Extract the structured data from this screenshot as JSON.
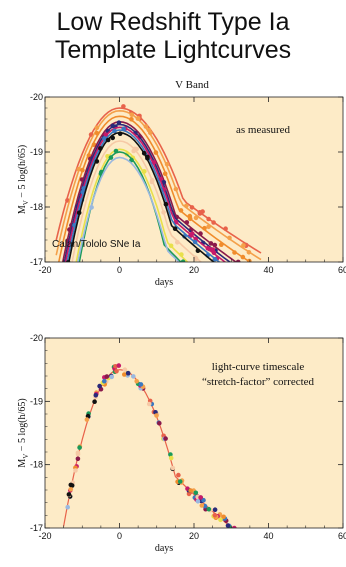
{
  "page": {
    "title_line1": "Low Redshift Type Ia",
    "title_line2": "Template Lightcurves"
  },
  "colors": {
    "panel_bg": "#fdebc7",
    "axis": "#222222",
    "palette": [
      "#f4a04a",
      "#e8624a",
      "#3a78c0",
      "#8a1a4a",
      "#2a2a7a",
      "#c71a6a",
      "#1a9a5a",
      "#f6c9a6",
      "#111111",
      "#e8e04a",
      "#9ab8e0",
      "#f08c2c"
    ]
  },
  "chart_data": [
    {
      "type": "scatter",
      "title": "V Band",
      "xlabel": "days",
      "ylabel": "M_V − 5 log(h/65)",
      "ylabel_main": "M",
      "ylabel_sub": "V",
      "ylabel_rest": " − 5 log(h/65)",
      "xlim": [
        -20,
        60
      ],
      "ylim": [
        -17,
        -20
      ],
      "xticks": [
        -20,
        0,
        20,
        40,
        60
      ],
      "xtick_labels": [
        "-20",
        "0",
        "20",
        "40",
        "60"
      ],
      "yticks": [
        -20,
        -19,
        -18,
        -17
      ],
      "ytick_labels": [
        "-20",
        "-19",
        "-18",
        "-17"
      ],
      "annotations": [
        "as measured",
        "Calan/Tololo SNe Ia"
      ],
      "series": [
        {
          "color": "#e8624a",
          "peak": -19.8,
          "stretch": 1.15
        },
        {
          "color": "#f4a04a",
          "peak": -19.75,
          "stretch": 1.1
        },
        {
          "color": "#f08c2c",
          "peak": -19.65,
          "stretch": 1.05
        },
        {
          "color": "#8a1a4a",
          "peak": -19.55,
          "stretch": 1.0
        },
        {
          "color": "#2a2a7a",
          "peak": -19.5,
          "stretch": 0.98
        },
        {
          "color": "#c71a6a",
          "peak": -19.45,
          "stretch": 0.97
        },
        {
          "color": "#3a78c0",
          "peak": -19.4,
          "stretch": 0.95
        },
        {
          "color": "#111111",
          "peak": -19.35,
          "stretch": 0.93
        },
        {
          "color": "#f6c9a6",
          "peak": -19.2,
          "stretch": 0.9
        },
        {
          "color": "#e8e04a",
          "peak": -19.05,
          "stretch": 0.85
        },
        {
          "color": "#1a9a5a",
          "peak": -19.0,
          "stretch": 0.8
        },
        {
          "color": "#9ab8e0",
          "peak": -18.9,
          "stretch": 0.85
        }
      ]
    },
    {
      "type": "scatter",
      "title": "",
      "xlabel": "days",
      "ylabel": "M_V − 5 log(h/65)",
      "ylabel_main": "M",
      "ylabel_sub": "V",
      "ylabel_rest": " − 5 log(h/65)",
      "xlim": [
        -20,
        60
      ],
      "ylim": [
        -17,
        -20
      ],
      "xticks": [
        -20,
        0,
        20,
        40,
        60
      ],
      "xtick_labels": [
        "-20",
        "0",
        "20",
        "40",
        "60"
      ],
      "yticks": [
        -20,
        -19,
        -18,
        -17
      ],
      "ytick_labels": [
        "-20",
        "-19",
        "-18",
        "-17"
      ],
      "annotations": [
        "light-curve timescale",
        "“stretch-factor” corrected"
      ],
      "series": [
        {
          "color": "#e8624a",
          "peak": -19.5,
          "stretch": 1.0
        }
      ]
    }
  ]
}
